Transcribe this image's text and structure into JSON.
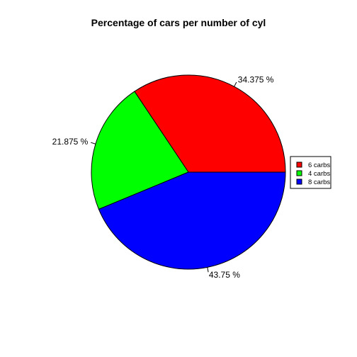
{
  "chart_data": {
    "type": "pie",
    "title": "Percentage of cars per number of cyl",
    "slices": [
      {
        "name": "6 carbs",
        "value": 34.375,
        "label": "34.375 %",
        "color": "#FF0000"
      },
      {
        "name": "4 carbs",
        "value": 21.875,
        "label": "21.875 %",
        "color": "#00FF00"
      },
      {
        "name": "8 carbs",
        "value": 43.75,
        "label": "43.75 %",
        "color": "#0000FF"
      }
    ],
    "start_angle_deg": 0,
    "direction": "counterclockwise",
    "legend": {
      "placement": "right",
      "entries": [
        "6 carbs",
        "4 carbs",
        "8 carbs"
      ]
    }
  }
}
